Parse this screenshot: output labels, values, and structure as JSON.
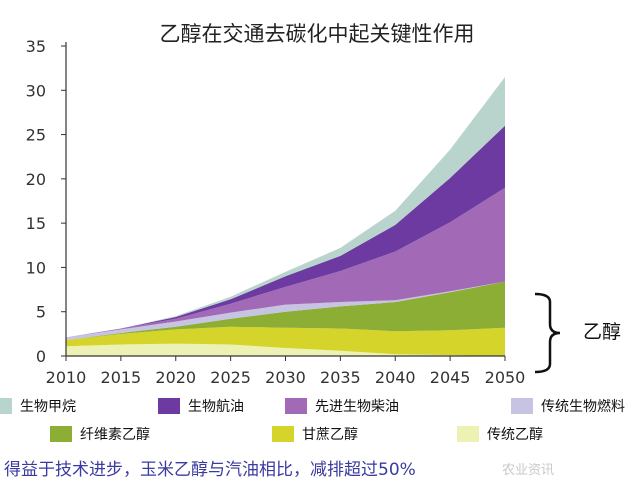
{
  "chart_data": {
    "type": "area",
    "stacked": true,
    "title": "乙醇在交通去碳化中起关键性作用",
    "ylabel": "",
    "xlabel": "",
    "x": [
      2010,
      2015,
      2020,
      2025,
      2030,
      2035,
      2040,
      2045,
      2050
    ],
    "ylim": [
      0,
      35
    ],
    "yticks": [
      0,
      5,
      10,
      15,
      20,
      25,
      30,
      35
    ],
    "grid": false,
    "series": [
      {
        "name": "传统乙醇",
        "color": "#edf2b4",
        "values": [
          1.1,
          1.3,
          1.4,
          1.3,
          0.9,
          0.6,
          0.2,
          0.1,
          0.0
        ]
      },
      {
        "name": "甘蔗乙醇",
        "color": "#d4d42a",
        "values": [
          0.7,
          1.2,
          1.6,
          2.0,
          2.3,
          2.5,
          2.6,
          2.8,
          3.2
        ]
      },
      {
        "name": "纤维素乙醇",
        "color": "#8cae34",
        "values": [
          0.0,
          0.1,
          0.3,
          0.9,
          1.8,
          2.5,
          3.3,
          4.3,
          5.2
        ]
      },
      {
        "name": "传统生物燃料",
        "color": "#c7c3e3",
        "values": [
          0.3,
          0.4,
          0.6,
          0.7,
          0.8,
          0.5,
          0.2,
          0.1,
          0.0
        ]
      },
      {
        "name": "先进生物柴油",
        "color": "#a26ab6",
        "values": [
          0.0,
          0.1,
          0.3,
          1.0,
          2.0,
          3.5,
          5.5,
          7.8,
          10.6
        ]
      },
      {
        "name": "生物航油",
        "color": "#6c3aa0",
        "values": [
          0.0,
          0.0,
          0.2,
          0.5,
          1.2,
          1.7,
          3.0,
          5.0,
          7.0
        ]
      },
      {
        "name": "生物甲烷",
        "color": "#b9d4cc",
        "values": [
          0.0,
          0.0,
          0.1,
          0.3,
          0.5,
          0.9,
          1.6,
          3.2,
          5.5
        ]
      }
    ],
    "annotation": "乙醇"
  },
  "legend_row1": [
    {
      "label": "生物甲烷",
      "color": "#b9d4cc"
    },
    {
      "label": "生物航油",
      "color": "#6c3aa0"
    },
    {
      "label": "先进生物柴油",
      "color": "#a26ab6"
    },
    {
      "label": "传统生物燃料",
      "color": "#c7c3e3"
    }
  ],
  "legend_row2": [
    {
      "label": "纤维素乙醇",
      "color": "#8cae34"
    },
    {
      "label": "甘蔗乙醇",
      "color": "#d4d42a"
    },
    {
      "label": "传统乙醇",
      "color": "#edf2b4"
    }
  ],
  "caption": "得益于技术进步，玉米乙醇与汽油相比，减排超过50%",
  "watermark": "农业资讯"
}
